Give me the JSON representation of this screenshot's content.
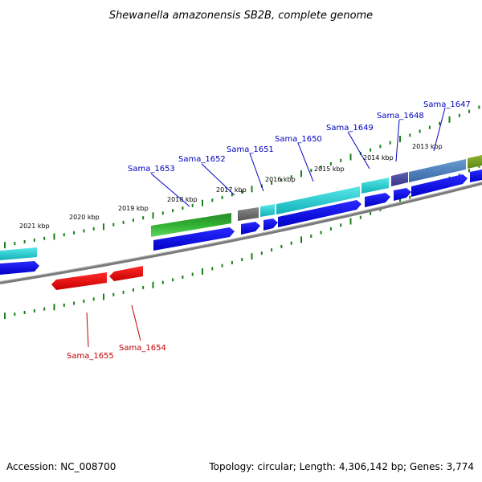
{
  "title": "Shewanella amazonensis SB2B, complete genome",
  "footer": {
    "accession": "Accession: NC_008700",
    "topology": "Topology: circular; Length: 4,306,142 bp; Genes: 3,774"
  },
  "colors": {
    "forward_cds": "#0000ff",
    "reverse_cds": "#ff0000",
    "label_forward": "#0000c0",
    "label_reverse": "#c00000",
    "tick": "#1a7f1a",
    "backbone": "#7a7a7a"
  },
  "kbp_labels": [
    "2021 kbp",
    "2020 kbp",
    "2019 kbp",
    "2018 kbp",
    "2017 kbp",
    "2016 kbp",
    "2015 kbp",
    "2014 kbp",
    "2013 kbp"
  ],
  "genes_top": [
    "Sama_1653",
    "Sama_1652",
    "Sama_1651",
    "Sama_1650",
    "Sama_1649",
    "Sama_1648",
    "Sama_1647"
  ],
  "genes_bottom": [
    "Sama_1655",
    "Sama_1654"
  ]
}
